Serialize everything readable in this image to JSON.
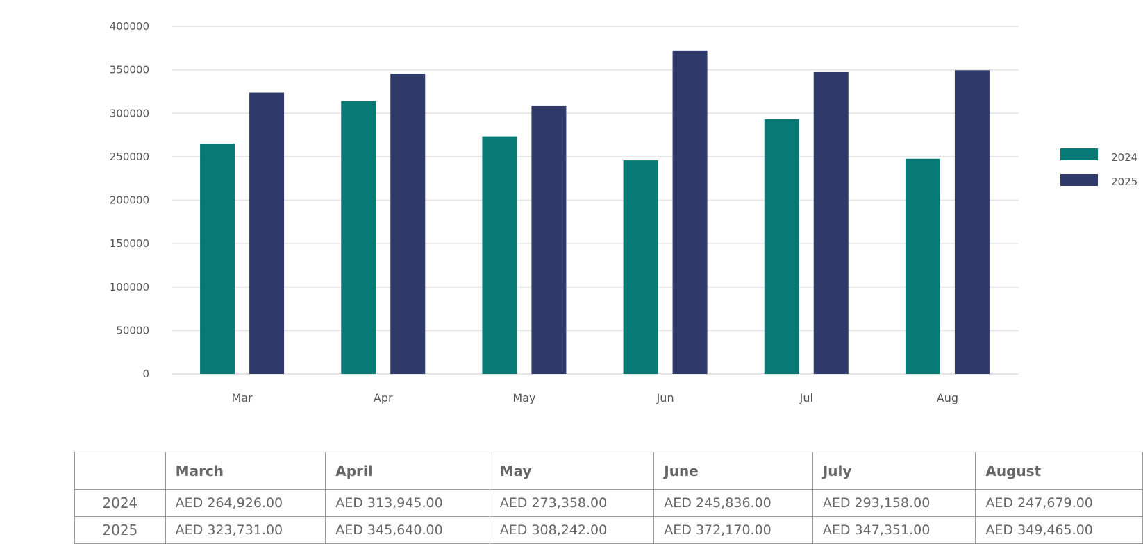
{
  "colors": {
    "series_2024": "#077a75",
    "series_2025": "#2f3a6b",
    "grid": "#e6e6e6"
  },
  "chart_data": {
    "type": "bar",
    "categories": [
      "Mar",
      "Apr",
      "May",
      "Jun",
      "Jul",
      "Aug"
    ],
    "series": [
      {
        "name": "2024",
        "values": [
          264926,
          313945,
          273358,
          245836,
          293158,
          247679
        ]
      },
      {
        "name": "2025",
        "values": [
          323731,
          345640,
          308242,
          372170,
          347351,
          349465
        ]
      }
    ],
    "yticks": [
      "0",
      "50000",
      "100000",
      "150000",
      "200000",
      "250000",
      "300000",
      "350000",
      "400000"
    ],
    "ylim": [
      0,
      400000
    ],
    "grid": true,
    "legend": "right"
  },
  "table": {
    "headers": [
      "",
      "March",
      "April",
      "May",
      "June",
      "July",
      "August"
    ],
    "rows": [
      {
        "label": "2024",
        "cells": [
          "AED 264,926.00",
          "AED 313,945.00",
          "AED 273,358.00",
          "AED 245,836.00",
          "AED 293,158.00",
          "AED 247,679.00"
        ]
      },
      {
        "label": "2025",
        "cells": [
          "AED 323,731.00",
          "AED 345,640.00",
          "AED 308,242.00",
          "AED 372,170.00",
          "AED 347,351.00",
          "AED 349,465.00"
        ]
      }
    ]
  }
}
